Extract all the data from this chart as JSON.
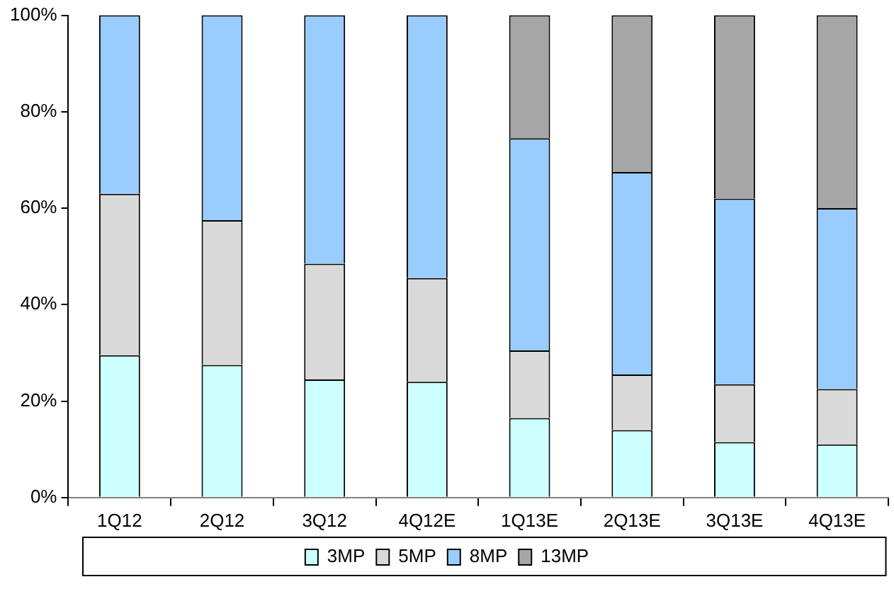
{
  "chart_data": {
    "type": "bar",
    "stacked": true,
    "categories": [
      "1Q12",
      "2Q12",
      "3Q12",
      "4Q12E",
      "1Q13E",
      "2Q13E",
      "3Q13E",
      "4Q13E"
    ],
    "series": [
      {
        "name": "3MP",
        "color": "#ccffff",
        "values": [
          29.5,
          27.5,
          24.5,
          24,
          16.5,
          14,
          11.5,
          11
        ]
      },
      {
        "name": "5MP",
        "color": "#d9d9d9",
        "values": [
          33.5,
          30,
          24,
          21.5,
          14,
          11.5,
          12,
          11.5
        ]
      },
      {
        "name": "8MP",
        "color": "#99ccff",
        "values": [
          37,
          42.5,
          51.5,
          54.5,
          44,
          42,
          38.5,
          37.5
        ]
      },
      {
        "name": "13MP",
        "color": "#a6a6a6",
        "values": [
          null,
          null,
          null,
          null,
          25.5,
          32.5,
          38,
          40
        ]
      }
    ],
    "ylim": [
      0,
      100
    ],
    "yticks": [
      {
        "value": 0,
        "label": "0%"
      },
      {
        "value": 20,
        "label": "20%"
      },
      {
        "value": 40,
        "label": "40%"
      },
      {
        "value": 60,
        "label": "60%"
      },
      {
        "value": 80,
        "label": "80%"
      },
      {
        "value": 100,
        "label": "100%"
      }
    ],
    "grid": false,
    "legend": "bottom"
  }
}
